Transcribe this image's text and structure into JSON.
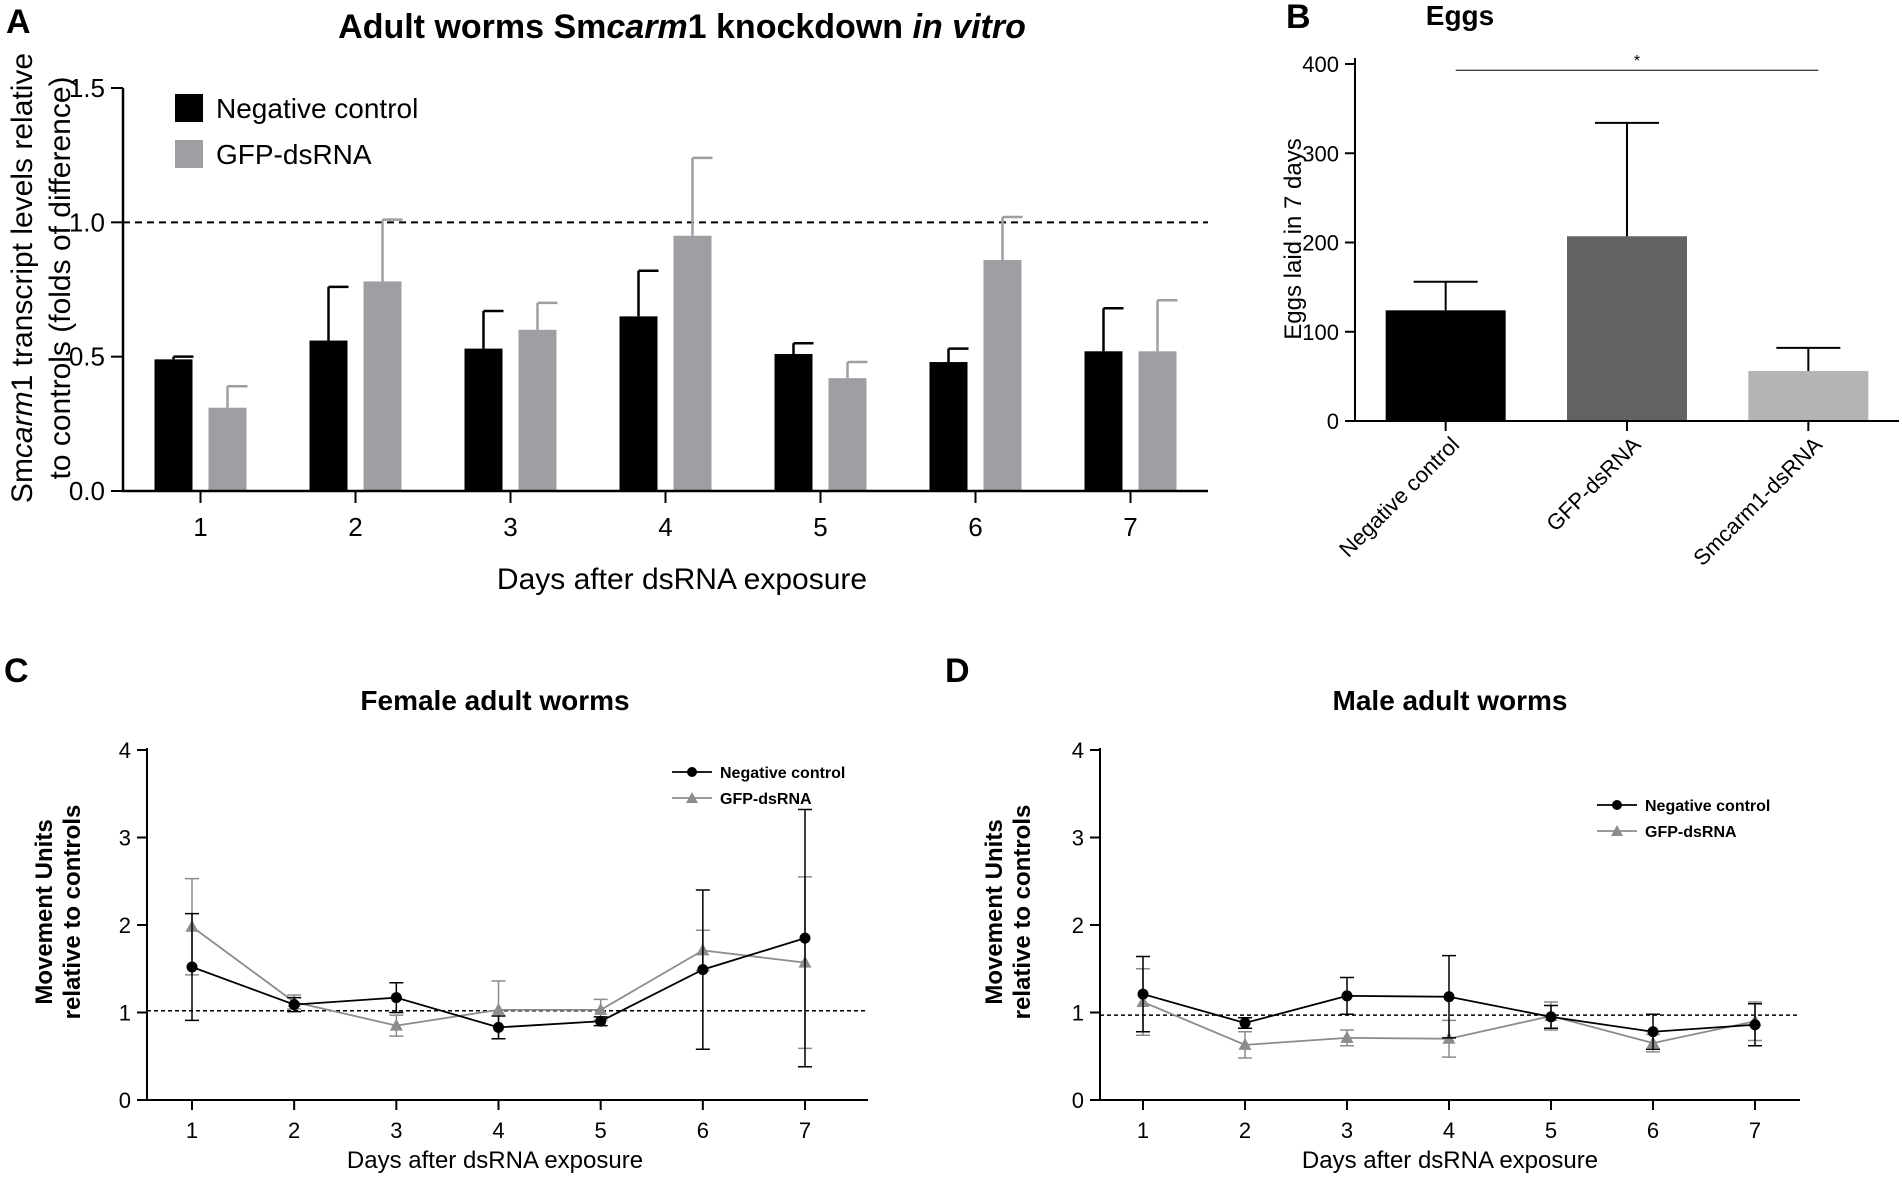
{
  "panels": {
    "A": {
      "label": "A",
      "title_parts": [
        "Adult worms Sm",
        "carm",
        "1 knockdown ",
        "in vitro"
      ],
      "ylabel_line1_parts": [
        "Sm",
        "carm",
        "1 transcript levels relative"
      ],
      "ylabel_line2": "to controls (folds of difference)",
      "xlabel": "Days after dsRNA exposure"
    },
    "B": {
      "label": "B",
      "title": "Eggs",
      "ylabel": "Eggs laid in 7 days",
      "significance": "*"
    },
    "C": {
      "label": "C",
      "title": "Female adult worms",
      "ylabel_line1": "Movement Units",
      "ylabel_line2": "relative to controls",
      "xlabel": "Days after dsRNA exposure"
    },
    "D": {
      "label": "D",
      "title": "Male adult worms",
      "ylabel_line1": "Movement Units",
      "ylabel_line2": "relative to controls",
      "xlabel": "Days after dsRNA exposure"
    }
  },
  "colors": {
    "negative_control": "#000000",
    "gfp_dsrna_bar": "#9e9fa2",
    "gfp_dsrna_dark": "#636363",
    "smcarm1_dsrna": "#b4b4b4",
    "line_gray": "#8c8c8c"
  },
  "chart_data": [
    {
      "panel": "A",
      "type": "bar",
      "title": "Adult worms Smcarm1 knockdown in vitro",
      "xlabel": "Days after dsRNA exposure",
      "ylabel": "Smcarm1 transcript levels relative to controls (folds of difference)",
      "categories": [
        "1",
        "2",
        "3",
        "4",
        "5",
        "6",
        "7"
      ],
      "ylim": [
        0,
        1.5
      ],
      "yticks": [
        "0.0",
        "0.5",
        "1.0",
        "1.5"
      ],
      "reference_line": 1.0,
      "legend": "top-left",
      "series": [
        {
          "name": "Negative control",
          "values": [
            0.49,
            0.56,
            0.53,
            0.65,
            0.51,
            0.48,
            0.52
          ],
          "errors": [
            0.01,
            0.2,
            0.14,
            0.17,
            0.04,
            0.05,
            0.16
          ]
        },
        {
          "name": "GFP-dsRNA",
          "values": [
            0.31,
            0.78,
            0.6,
            0.95,
            0.42,
            0.86,
            0.52
          ],
          "errors": [
            0.08,
            0.23,
            0.1,
            0.29,
            0.06,
            0.16,
            0.19
          ]
        }
      ]
    },
    {
      "panel": "B",
      "type": "bar",
      "title": "Eggs",
      "ylabel": "Eggs laid in 7 days",
      "categories": [
        "Negative control",
        "GFP-dsRNA",
        "Smcarm1-dsRNA"
      ],
      "values": [
        124,
        207,
        56
      ],
      "errors": [
        32,
        127,
        26
      ],
      "ylim": [
        0,
        400
      ],
      "yticks": [
        "0",
        "100",
        "200",
        "300",
        "400"
      ],
      "significance": {
        "between": [
          "Negative control",
          "Smcarm1-dsRNA"
        ],
        "label": "*",
        "y": 393
      }
    },
    {
      "panel": "C",
      "type": "line",
      "title": "Female adult worms",
      "xlabel": "Days after dsRNA exposure",
      "ylabel": "Movement Units relative to controls",
      "x": [
        1,
        2,
        3,
        4,
        5,
        6,
        7
      ],
      "ylim": [
        0,
        4
      ],
      "yticks": [
        "0",
        "1",
        "2",
        "3",
        "4"
      ],
      "reference_line": 1.02,
      "legend": "top-right",
      "series": [
        {
          "name": "Negative control",
          "marker": "circle",
          "values": [
            1.52,
            1.09,
            1.17,
            0.83,
            0.9,
            1.49,
            1.85
          ],
          "errors": [
            0.61,
            0.08,
            0.17,
            0.13,
            0.05,
            0.91,
            1.47
          ]
        },
        {
          "name": "GFP-dsRNA",
          "marker": "triangle",
          "values": [
            1.98,
            1.12,
            0.85,
            1.03,
            1.03,
            1.71,
            1.57
          ],
          "errors": [
            0.55,
            0.08,
            0.12,
            0.33,
            0.12,
            0.23,
            0.98
          ]
        }
      ]
    },
    {
      "panel": "D",
      "type": "line",
      "title": "Male adult worms",
      "xlabel": "Days after dsRNA exposure",
      "ylabel": "Movement Units relative to controls",
      "x": [
        1,
        2,
        3,
        4,
        5,
        6,
        7
      ],
      "ylim": [
        0,
        4
      ],
      "yticks": [
        "0",
        "1",
        "2",
        "3",
        "4"
      ],
      "reference_line": 0.97,
      "legend": "top-right",
      "series": [
        {
          "name": "Negative control",
          "marker": "circle",
          "values": [
            1.21,
            0.88,
            1.19,
            1.18,
            0.95,
            0.78,
            0.86
          ],
          "errors": [
            0.43,
            0.06,
            0.21,
            0.47,
            0.13,
            0.2,
            0.24
          ]
        },
        {
          "name": "GFP-dsRNA",
          "marker": "triangle",
          "values": [
            1.12,
            0.63,
            0.71,
            0.7,
            0.96,
            0.65,
            0.9
          ],
          "errors": [
            0.38,
            0.15,
            0.09,
            0.21,
            0.16,
            0.1,
            0.22
          ]
        }
      ]
    }
  ]
}
